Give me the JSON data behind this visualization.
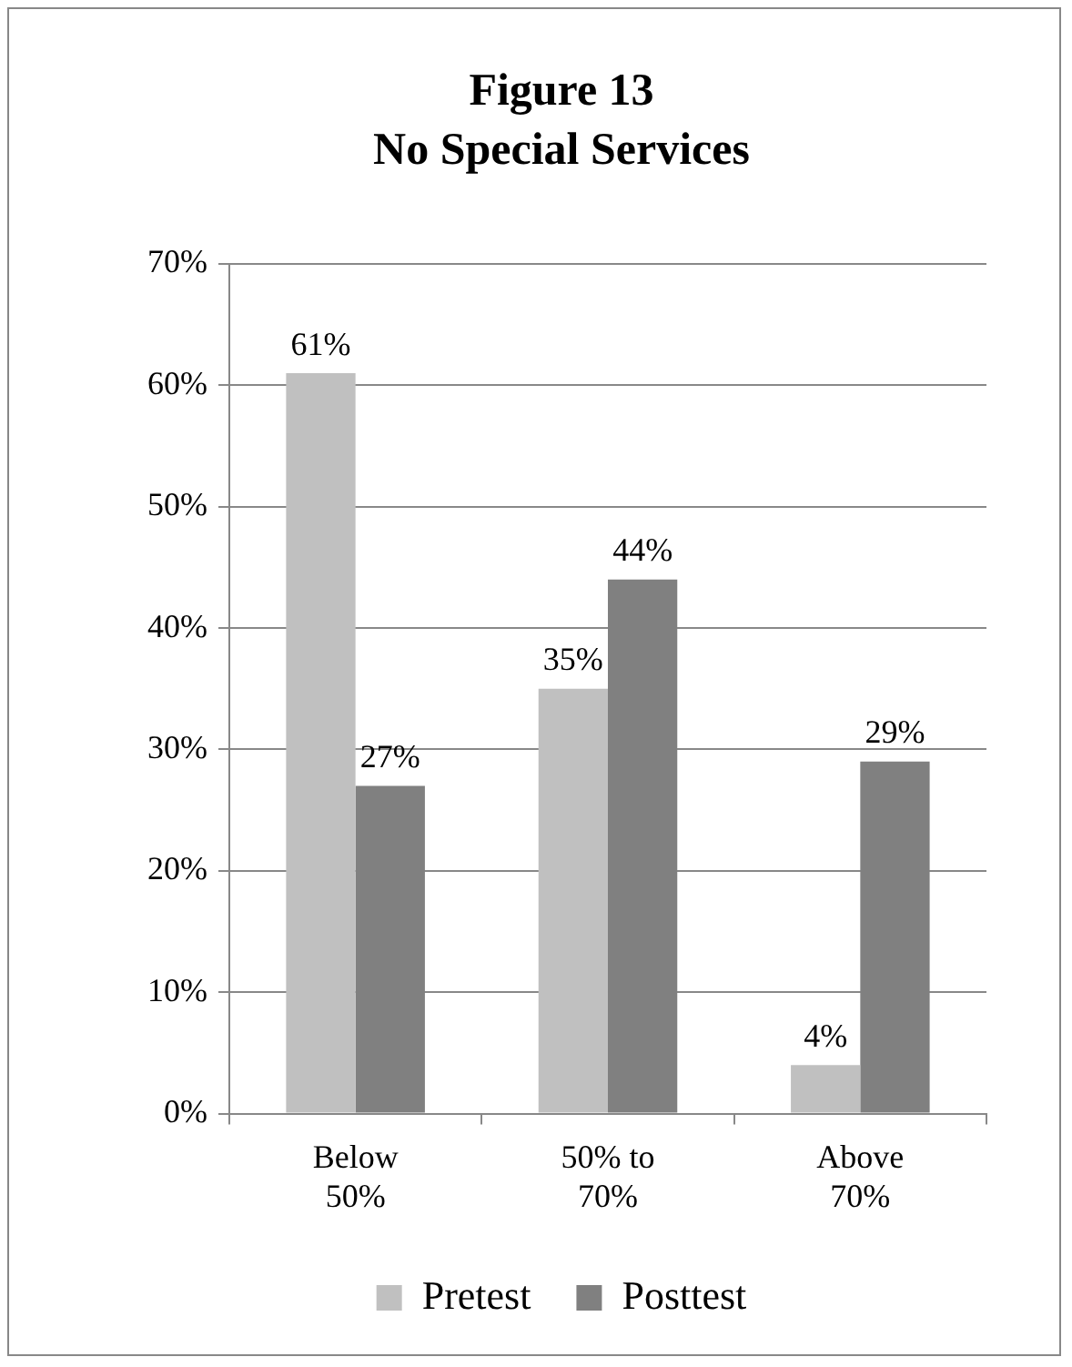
{
  "chart_data": {
    "type": "bar",
    "title": "Figure 13\nNo Special Services",
    "categories": [
      "Below 50%",
      "50% to 70%",
      "Above 70%"
    ],
    "series": [
      {
        "name": "Pretest",
        "color": "#c0c0c0",
        "values": [
          61,
          35,
          4
        ],
        "value_labels": [
          "61%",
          "35%",
          "4%"
        ]
      },
      {
        "name": "Posttest",
        "color": "#808080",
        "values": [
          27,
          44,
          29
        ],
        "value_labels": [
          "27%",
          "44%",
          "29%"
        ]
      }
    ],
    "ylim": [
      0,
      70
    ],
    "yticks": [
      {
        "value": 0,
        "label": "0%"
      },
      {
        "value": 10,
        "label": "10%"
      },
      {
        "value": 20,
        "label": "20%"
      },
      {
        "value": 30,
        "label": "30%"
      },
      {
        "value": 40,
        "label": "40%"
      },
      {
        "value": 50,
        "label": "50%"
      },
      {
        "value": 60,
        "label": "60%"
      },
      {
        "value": 70,
        "label": "70%"
      }
    ],
    "grid": "y",
    "legend": "bottom"
  }
}
